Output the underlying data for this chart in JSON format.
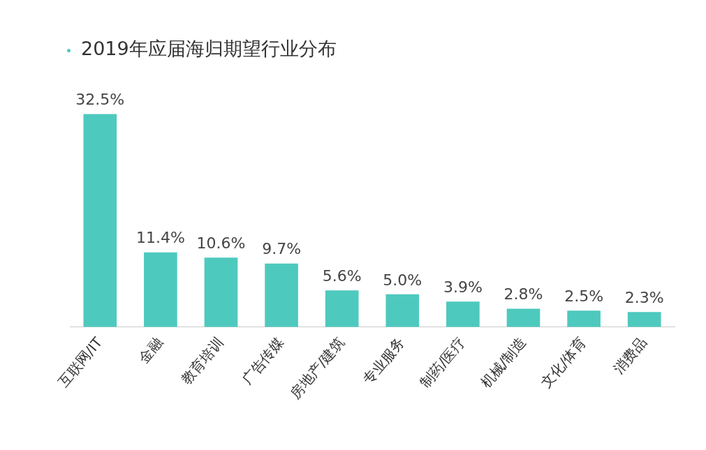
{
  "chart_data": {
    "type": "bar",
    "title": "2019年应届海归期望行业分布",
    "categories": [
      "互联网/IT",
      "金融",
      "教育培训",
      "广告传媒",
      "房地产/建筑",
      "专业服务",
      "制药/医疗",
      "机械/制造",
      "文化/体育",
      "消费品"
    ],
    "values": [
      32.5,
      11.4,
      10.6,
      9.7,
      5.6,
      5.0,
      3.9,
      2.8,
      2.5,
      2.3
    ],
    "value_labels": [
      "32.5%",
      "11.4%",
      "10.6%",
      "9.7%",
      "5.6%",
      "5.0%",
      "3.9%",
      "2.8%",
      "2.5%",
      "2.3%"
    ],
    "color": "#4ec9be",
    "legend": false
  }
}
